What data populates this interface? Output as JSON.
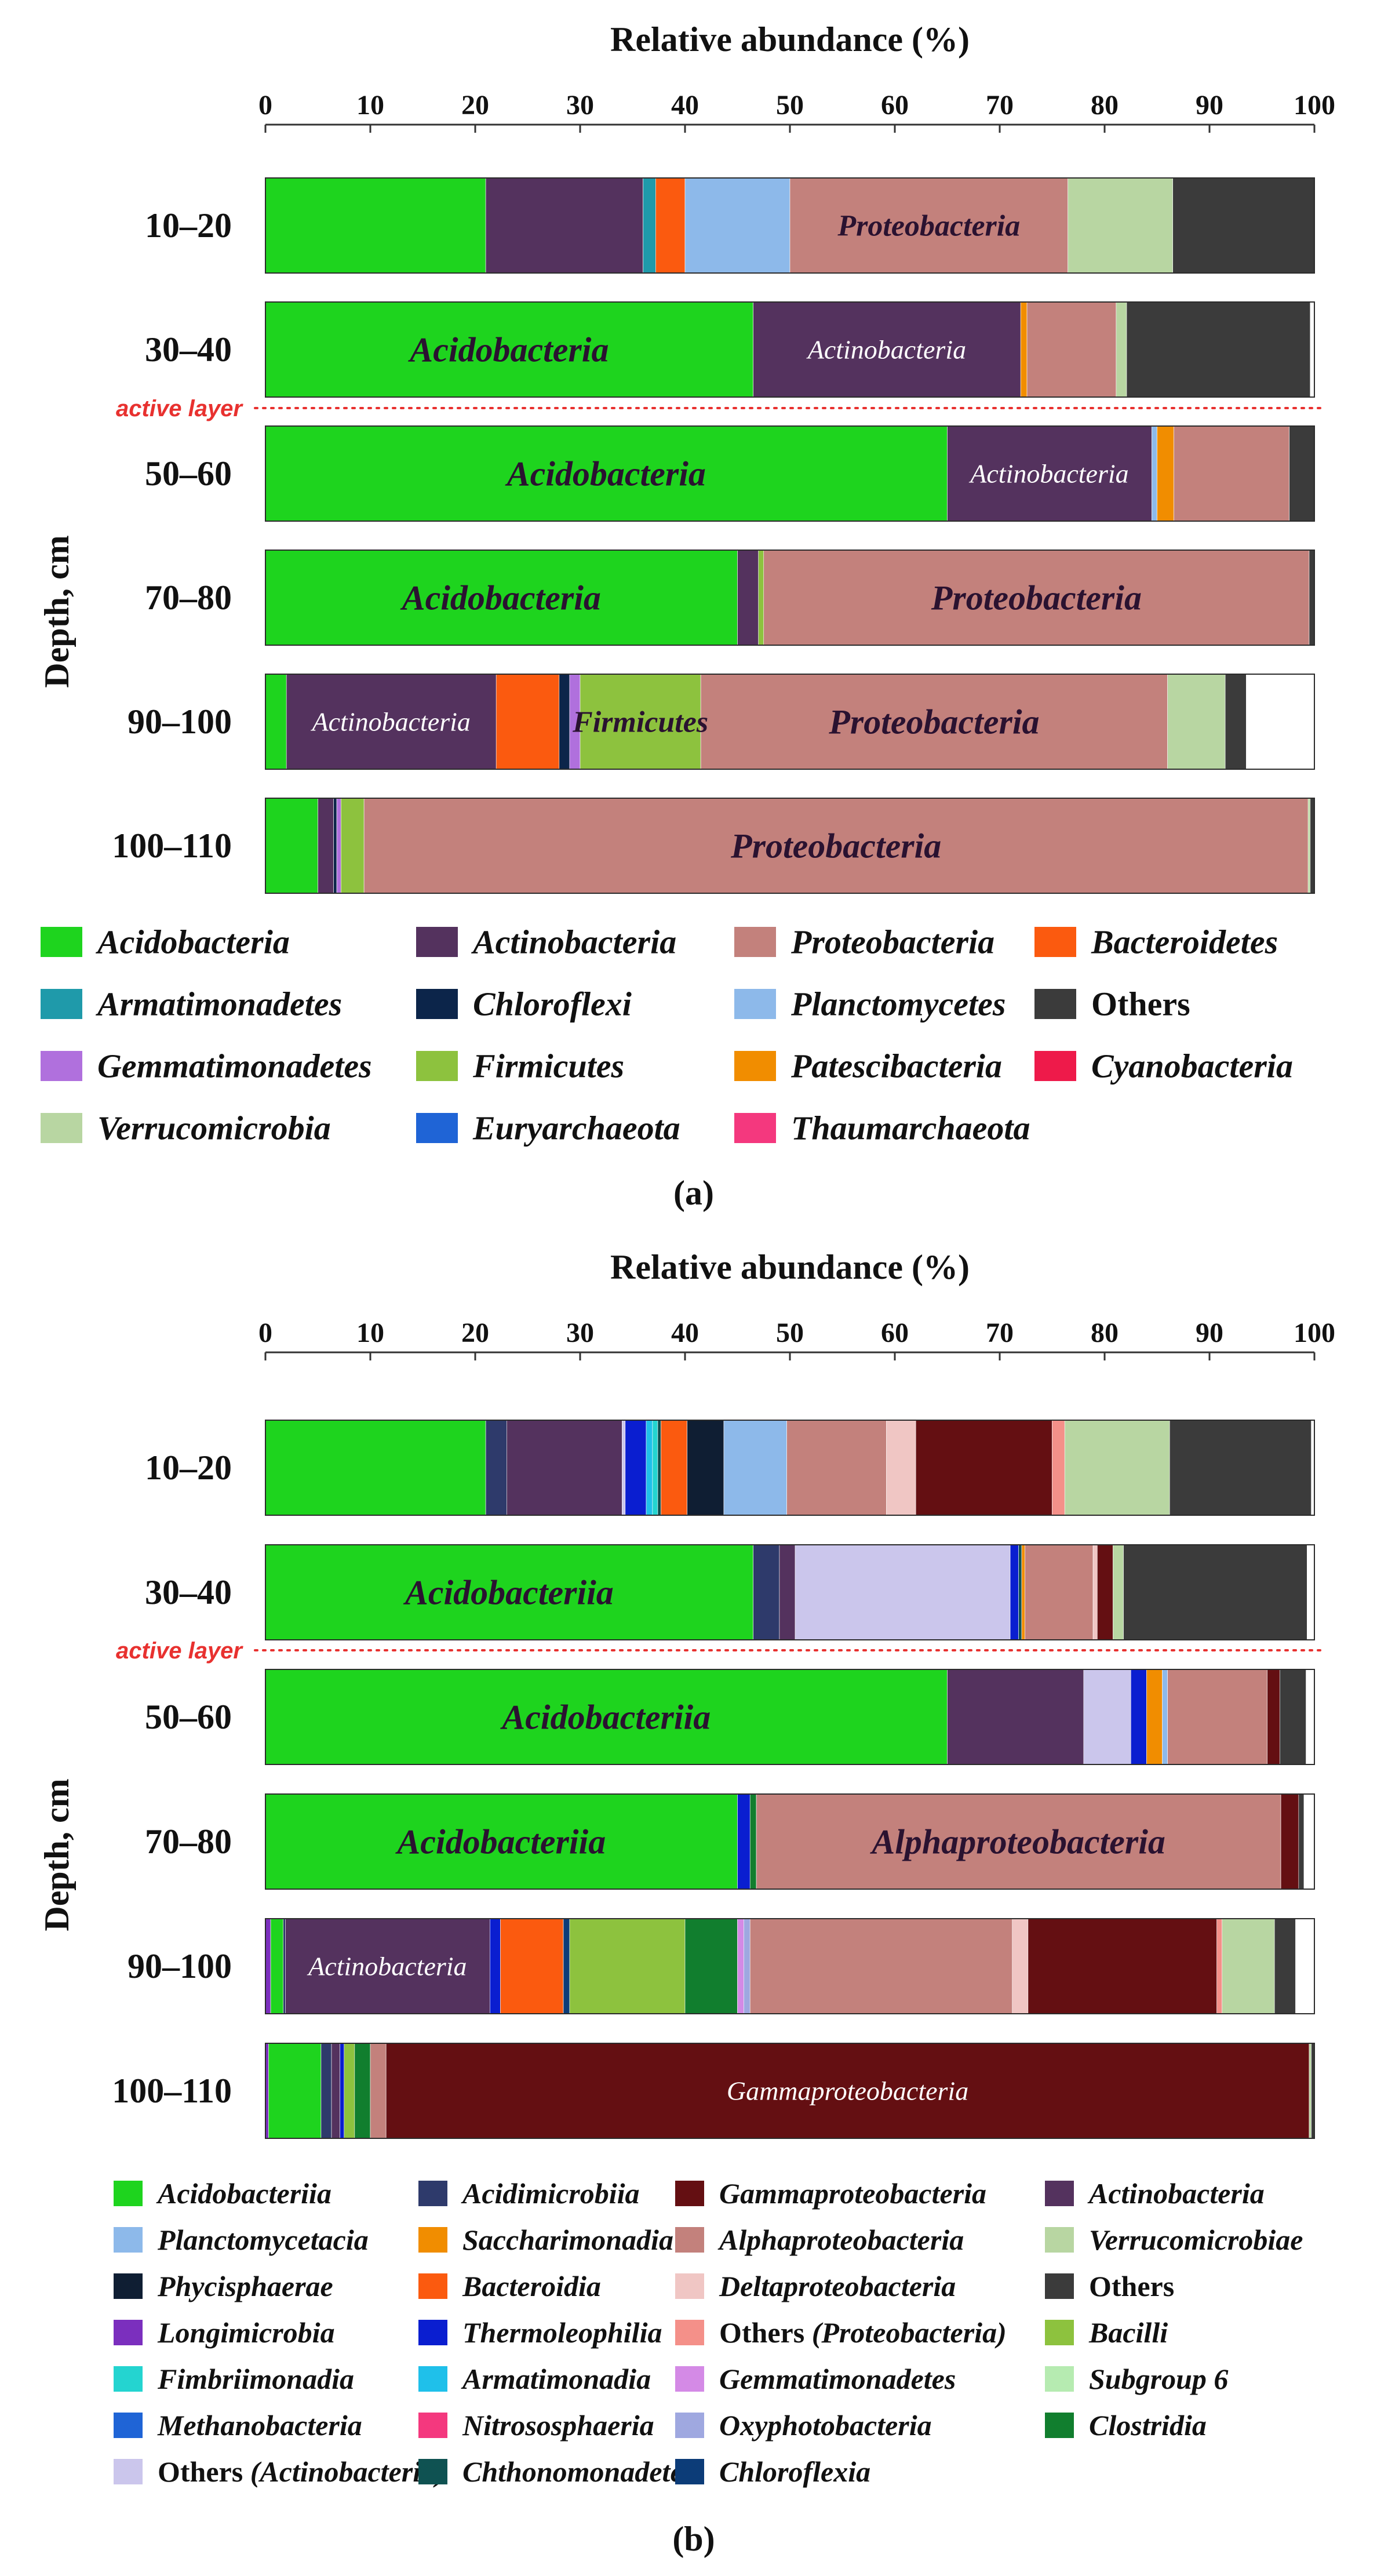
{
  "chart_data": [
    {
      "type": "bar",
      "orientation": "horizontal",
      "stacked": true,
      "panel_label": "(a)",
      "title": "Relative abundance (%)",
      "xlabel": "Relative abundance (%)",
      "ylabel": "Depth, cm",
      "xlim": [
        0,
        100
      ],
      "xticks": [
        "0",
        "10",
        "20",
        "30",
        "40",
        "50",
        "60",
        "70",
        "80",
        "90",
        "100"
      ],
      "categories": [
        "10–20",
        "30–40",
        "50–60",
        "70–80",
        "90–100",
        "100–110"
      ],
      "annotation": "active layer",
      "series": [
        {
          "name": "Acidobacteria",
          "color": "#1ed41e",
          "values": [
            21,
            46.5,
            65,
            45,
            2,
            5
          ]
        },
        {
          "name": "Actinobacteria",
          "color": "#54325e",
          "values": [
            15,
            25.5,
            19.5,
            2,
            20,
            1.5
          ]
        },
        {
          "name": "Armatimonadetes",
          "color": "#1f9aaa",
          "values": [
            1.2,
            0,
            0,
            0,
            0,
            0
          ]
        },
        {
          "name": "Bacteroidetes",
          "color": "#fb5a0f",
          "values": [
            2.8,
            0,
            0,
            0,
            6,
            0
          ]
        },
        {
          "name": "Chloroflexi",
          "color": "#0c254a",
          "values": [
            0,
            0,
            0,
            0,
            1,
            0.3
          ]
        },
        {
          "name": "Planctomycetes",
          "color": "#8db9ea",
          "values": [
            10,
            0,
            0.5,
            0,
            0,
            0
          ]
        },
        {
          "name": "Gemmatimonadetes",
          "color": "#b070dd",
          "values": [
            0,
            0,
            0,
            0,
            1,
            0.4
          ]
        },
        {
          "name": "Firmicutes",
          "color": "#8dc23e",
          "values": [
            0,
            0,
            0,
            0.5,
            11.5,
            2.2
          ]
        },
        {
          "name": "Patescibacteria",
          "color": "#f18d00",
          "values": [
            0,
            0.6,
            1.6,
            0,
            0,
            0
          ]
        },
        {
          "name": "Cyanobacteria",
          "color": "#ee1a4a",
          "values": [
            0,
            0,
            0,
            0,
            0,
            0
          ]
        },
        {
          "name": "Euryarchaeota",
          "color": "#1f64d6",
          "values": [
            0,
            0,
            0,
            0,
            0,
            0
          ]
        },
        {
          "name": "Thaumarchaeota",
          "color": "#f4387e",
          "values": [
            0,
            0,
            0,
            0,
            0,
            0
          ]
        },
        {
          "name": "Proteobacteria",
          "color": "#c3817c",
          "values": [
            26.5,
            8.5,
            11,
            52,
            44.5,
            90
          ]
        },
        {
          "name": "Verrucomicrobia",
          "color": "#b8d6a2",
          "values": [
            10,
            1,
            0,
            0,
            5.5,
            0.2
          ]
        },
        {
          "name": "Others",
          "color": "#3b3b3b",
          "values": [
            13.5,
            17.5,
            2.4,
            0.5,
            2,
            0.5
          ]
        }
      ],
      "bar_labels": [
        {
          "category": "10–20",
          "series": "Proteobacteria",
          "text": "Proteobacteria"
        },
        {
          "category": "30–40",
          "series": "Acidobacteria",
          "text": "Acidobacteria"
        },
        {
          "category": "30–40",
          "series": "Actinobacteria",
          "text": "Actinobacteria"
        },
        {
          "category": "50–60",
          "series": "Acidobacteria",
          "text": "Acidobacteria"
        },
        {
          "category": "50–60",
          "series": "Actinobacteria",
          "text": "Actinobacteria"
        },
        {
          "category": "70–80",
          "series": "Acidobacteria",
          "text": "Acidobacteria"
        },
        {
          "category": "70–80",
          "series": "Proteobacteria",
          "text": "Proteobacteria"
        },
        {
          "category": "90–100",
          "series": "Actinobacteria",
          "text": "Actinobacteria"
        },
        {
          "category": "90–100",
          "series": "Firmicutes",
          "text": "Firmicutes"
        },
        {
          "category": "90–100",
          "series": "Proteobacteria",
          "text": "Proteobacteria"
        },
        {
          "category": "100–110",
          "series": "Proteobacteria",
          "text": "Proteobacteria"
        }
      ],
      "legend": [
        [
          {
            "name": "Acidobacteria",
            "color": "#1ed41e"
          },
          {
            "name": "Actinobacteria",
            "color": "#54325e"
          },
          {
            "name": "Proteobacteria",
            "color": "#c3817c"
          },
          {
            "name": "Bacteroidetes",
            "color": "#fb5a0f"
          }
        ],
        [
          {
            "name": "Armatimonadetes",
            "color": "#1f9aaa"
          },
          {
            "name": "Chloroflexi",
            "color": "#0c254a"
          },
          {
            "name": "Planctomycetes",
            "color": "#8db9ea"
          },
          {
            "name": "Others",
            "color": "#3b3b3b",
            "upright": true
          }
        ],
        [
          {
            "name": "Gemmatimonadetes",
            "color": "#b070dd"
          },
          {
            "name": "Firmicutes",
            "color": "#8dc23e"
          },
          {
            "name": "Patescibacteria",
            "color": "#f18d00"
          },
          {
            "name": "Cyanobacteria",
            "color": "#ee1a4a"
          }
        ],
        [
          {
            "name": "Verrucomicrobia",
            "color": "#b8d6a2"
          },
          {
            "name": "Euryarchaeota",
            "color": "#1f64d6"
          },
          {
            "name": "Thaumarchaeota",
            "color": "#f4387e"
          }
        ]
      ]
    },
    {
      "type": "bar",
      "orientation": "horizontal",
      "stacked": true,
      "panel_label": "(b)",
      "title": "Relative abundance (%)",
      "xlabel": "Relative abundance (%)",
      "ylabel": "Depth, cm",
      "xlim": [
        0,
        100
      ],
      "xticks": [
        "0",
        "10",
        "20",
        "30",
        "40",
        "50",
        "60",
        "70",
        "80",
        "90",
        "100"
      ],
      "categories": [
        "10–20",
        "30–40",
        "50–60",
        "70–80",
        "90–100",
        "100–110"
      ],
      "annotation": "active layer",
      "series": [
        {
          "name": "Longimicrobia",
          "color": "#7b2fbe",
          "values": [
            0,
            0,
            0,
            0,
            0.5,
            0.3
          ]
        },
        {
          "name": "Acidobacteriia",
          "color": "#1ed41e",
          "values": [
            21,
            46.5,
            65,
            45,
            1.2,
            5
          ]
        },
        {
          "name": "Acidimicrobiia",
          "color": "#2e3a6b",
          "values": [
            2,
            2.5,
            0,
            0,
            0.2,
            1
          ]
        },
        {
          "name": "Actinobacteria",
          "color": "#54325e",
          "values": [
            11,
            1.5,
            13,
            0,
            19.5,
            0.8
          ]
        },
        {
          "name": "Others (Actinobacteria)",
          "color": "#cbc6ec",
          "values": [
            0.3,
            20.5,
            4.5,
            0,
            0,
            0
          ]
        },
        {
          "name": "Thermoleophilia",
          "color": "#0a1ed0",
          "values": [
            2,
            0.8,
            1.5,
            1.2,
            1,
            0.4
          ]
        },
        {
          "name": "Armatimonadia",
          "color": "#1fc0ea",
          "values": [
            0.6,
            0,
            0,
            0,
            0,
            0
          ]
        },
        {
          "name": "Fimbriimonadia",
          "color": "#24d4d0",
          "values": [
            0.5,
            0,
            0,
            0,
            0,
            0
          ]
        },
        {
          "name": "Chthonomonadetes",
          "color": "#0f5252",
          "values": [
            0.3,
            0.3,
            0,
            0,
            0,
            0
          ]
        },
        {
          "name": "Saccharimonadia",
          "color": "#f18d00",
          "values": [
            0,
            0.3,
            1.5,
            0,
            0,
            0
          ]
        },
        {
          "name": "Bacteroidia",
          "color": "#fb5a0f",
          "values": [
            2.5,
            0,
            0,
            0,
            6,
            0
          ]
        },
        {
          "name": "Chloroflexia",
          "color": "#0c3c78",
          "values": [
            0,
            0,
            0,
            0,
            0.6,
            0
          ]
        },
        {
          "name": "Phycisphaerae",
          "color": "#0f1e33",
          "values": [
            3.5,
            0,
            0,
            0,
            0,
            0
          ]
        },
        {
          "name": "Planctomycetacia",
          "color": "#8db9ea",
          "values": [
            6,
            0,
            0.5,
            0,
            0,
            0
          ]
        },
        {
          "name": "Bacilli",
          "color": "#8dc23e",
          "values": [
            0,
            0,
            0,
            0,
            11,
            1
          ]
        },
        {
          "name": "Clostridia",
          "color": "#117e2e",
          "values": [
            0,
            0,
            0,
            0.6,
            5,
            1.5
          ]
        },
        {
          "name": "Gemmatimonadetes",
          "color": "#d48ae6",
          "values": [
            0,
            0,
            0,
            0,
            0.6,
            0
          ]
        },
        {
          "name": "Oxyphotobacteria",
          "color": "#9fa8e0",
          "values": [
            0,
            0,
            0,
            0,
            0.6,
            0
          ]
        },
        {
          "name": "Methanobacteria",
          "color": "#1f64d6",
          "values": [
            0,
            0,
            0,
            0,
            0,
            0
          ]
        },
        {
          "name": "Nitrososphaeria",
          "color": "#f4387e",
          "values": [
            0,
            0,
            0,
            0,
            0,
            0
          ]
        },
        {
          "name": "Subgroup 6",
          "color": "#b6ebb1",
          "values": [
            0,
            0,
            0,
            0,
            0,
            0
          ]
        },
        {
          "name": "Alphaproteobacteria",
          "color": "#c3817c",
          "values": [
            9.5,
            6.5,
            9.5,
            50,
            25,
            1.5
          ]
        },
        {
          "name": "Deltaproteobacteria",
          "color": "#f0c6c4",
          "values": [
            2.8,
            0.4,
            0,
            0,
            1.5,
            0
          ]
        },
        {
          "name": "Gammaproteobacteria",
          "color": "#640f12",
          "values": [
            13,
            1.5,
            1.2,
            1.7,
            18,
            88
          ]
        },
        {
          "name": "Others (Proteobacteria)",
          "color": "#f49089",
          "values": [
            1.2,
            0,
            0,
            0,
            0.5,
            0
          ]
        },
        {
          "name": "Verrucomicrobiae",
          "color": "#b8d6a2",
          "values": [
            10,
            1,
            0,
            0,
            5,
            0.2
          ]
        },
        {
          "name": "Others",
          "color": "#3b3b3b",
          "values": [
            13.5,
            17.5,
            2.5,
            0.5,
            2,
            0.3
          ]
        }
      ],
      "bar_labels": [
        {
          "category": "30–40",
          "series": "Acidobacteriia",
          "text": "Acidobacteriia"
        },
        {
          "category": "50–60",
          "series": "Acidobacteriia",
          "text": "Acidobacteriia"
        },
        {
          "category": "70–80",
          "series": "Acidobacteriia",
          "text": "Acidobacteriia"
        },
        {
          "category": "70–80",
          "series": "Alphaproteobacteria",
          "text": "Alphaproteobacteria"
        },
        {
          "category": "90–100",
          "series": "Actinobacteria",
          "text": "Actinobacteria"
        },
        {
          "category": "100–110",
          "series": "Gammaproteobacteria",
          "text": "Gammaproteobacteria"
        }
      ],
      "legend": [
        [
          {
            "name": "Acidobacteriia",
            "color": "#1ed41e"
          },
          {
            "name": "Acidimicrobiia",
            "color": "#2e3a6b"
          },
          {
            "name": "Gammaproteobacteria",
            "color": "#640f12"
          },
          {
            "name": "Actinobacteria",
            "color": "#54325e"
          }
        ],
        [
          {
            "name": "Planctomycetacia",
            "color": "#8db9ea"
          },
          {
            "name": "Saccharimonadia",
            "color": "#f18d00"
          },
          {
            "name": "Alphaproteobacteria",
            "color": "#c3817c"
          },
          {
            "name": "Verrucomicrobiae",
            "color": "#b8d6a2"
          }
        ],
        [
          {
            "name": "Phycisphaerae",
            "color": "#0f1e33"
          },
          {
            "name": "Bacteroidia",
            "color": "#fb5a0f"
          },
          {
            "name": "Deltaproteobacteria",
            "color": "#f0c6c4"
          },
          {
            "name": "Others",
            "color": "#3b3b3b",
            "upright": true
          }
        ],
        [
          {
            "name": "Longimicrobia",
            "color": "#7b2fbe"
          },
          {
            "name": "Thermoleophilia",
            "color": "#0a1ed0"
          },
          {
            "name": "Others (Proteobacteria)",
            "color": "#f49089",
            "mixed": true
          },
          {
            "name": "Bacilli",
            "color": "#8dc23e"
          }
        ],
        [
          {
            "name": "Fimbriimonadia",
            "color": "#24d4d0"
          },
          {
            "name": "Armatimonadia",
            "color": "#1fc0ea"
          },
          {
            "name": "Gemmatimonadetes",
            "color": "#d48ae6"
          },
          {
            "name": "Subgroup 6",
            "color": "#b6ebb1"
          }
        ],
        [
          {
            "name": "Methanobacteria",
            "color": "#1f64d6"
          },
          {
            "name": "Nitrososphaeria",
            "color": "#f4387e"
          },
          {
            "name": "Oxyphotobacteria",
            "color": "#9fa8e0"
          },
          {
            "name": "Clostridia",
            "color": "#117e2e"
          }
        ],
        [
          {
            "name": "Others (Actinobacteria)",
            "color": "#cbc6ec",
            "mixed": true
          },
          {
            "name": "Chthonomonadetes",
            "color": "#0f5252"
          },
          {
            "name": "Chloroflexia",
            "color": "#0c3c78"
          }
        ]
      ]
    }
  ]
}
